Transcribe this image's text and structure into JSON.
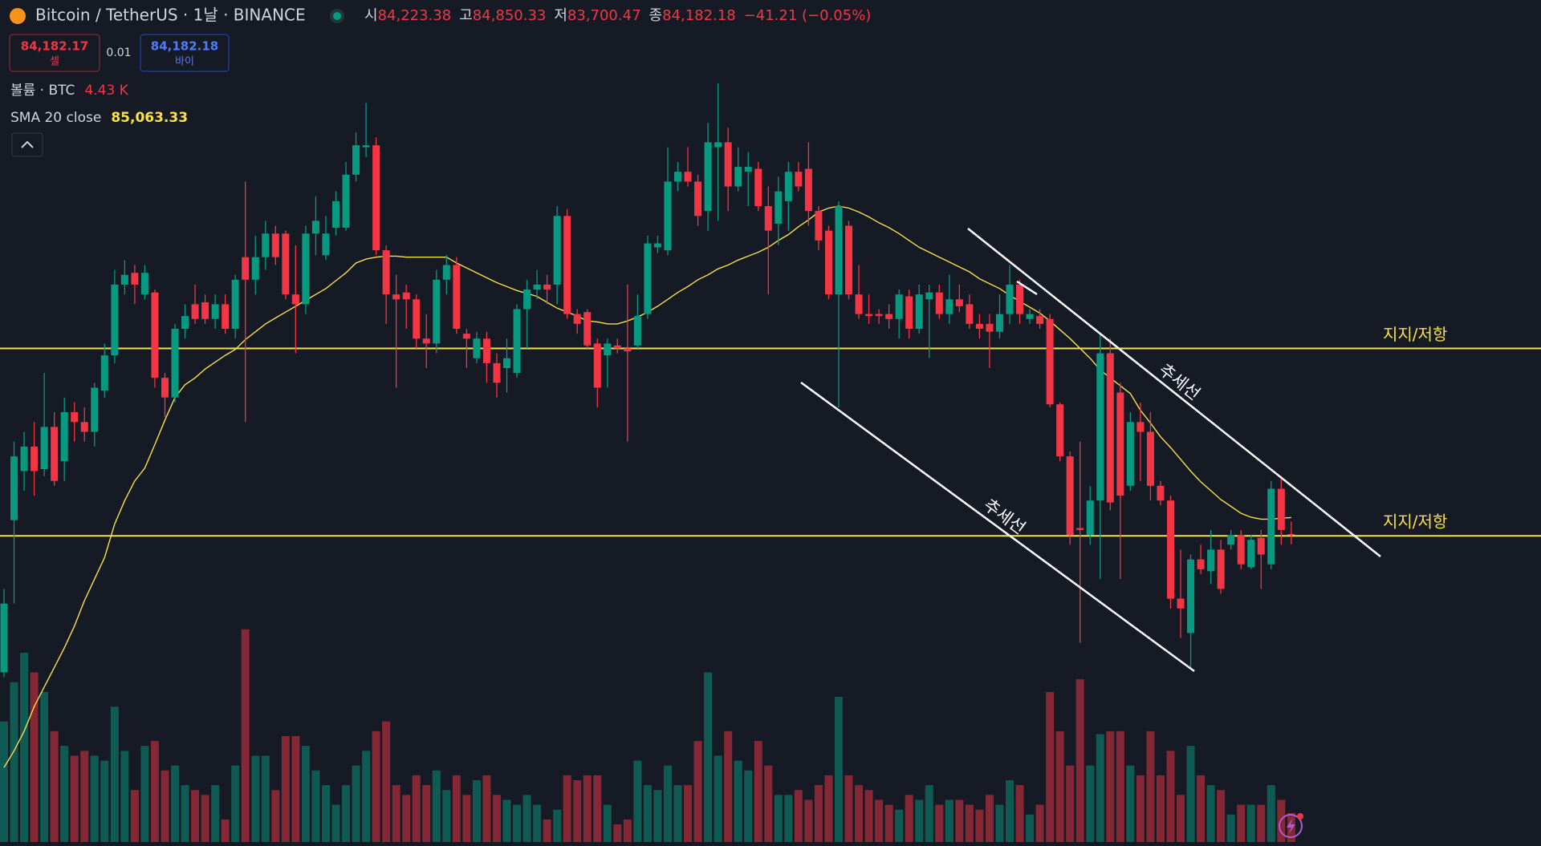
{
  "header": {
    "symbol": "Bitcoin / TetherUS · 1날 · BINANCE",
    "open_label": "시",
    "open": "84,223.38",
    "high_label": "고",
    "high": "84,850.33",
    "low_label": "저",
    "low": "83,700.47",
    "close_label": "종",
    "close": "84,182.18",
    "change": "−41.21 (−0.05%)"
  },
  "trade": {
    "sell_price": "84,182.17",
    "sell_label": "셀",
    "spread": "0.01",
    "buy_price": "84,182.18",
    "buy_label": "바이"
  },
  "chart_data": {
    "type": "candlestick",
    "up_color": "#089981",
    "down_color": "#f23645",
    "ylim": [
      68330,
      111430
    ],
    "volume_lim": [
      0,
      40000
    ],
    "open": [
      77180,
      84930,
      87430,
      88680,
      87530,
      89680,
      87930,
      90430,
      89930,
      89430,
      91530,
      93330,
      96930,
      97530,
      96430,
      96530,
      92180,
      91180,
      94680,
      95930,
      96030,
      95180,
      95930,
      94680,
      98330,
      97180,
      98330,
      99530,
      99530,
      96430,
      95930,
      99530,
      98430,
      99830,
      99830,
      102530,
      103930,
      104030,
      98680,
      96430,
      96530,
      96180,
      94180,
      93930,
      97180,
      97930,
      94430,
      93180,
      94180,
      92930,
      92680,
      92430,
      95680,
      96680,
      96930,
      96930,
      100430,
      95430,
      95530,
      93930,
      93330,
      93830,
      93680,
      93830,
      95430,
      98830,
      98680,
      102180,
      102680,
      102180,
      100680,
      103930,
      104180,
      101930,
      102680,
      102830,
      100930,
      100030,
      101180,
      102680,
      102830,
      100680,
      99680,
      96430,
      99930,
      96430,
      95430,
      95430,
      95430,
      95180,
      96330,
      94680,
      96180,
      96530,
      95430,
      96180,
      95930,
      94930,
      94930,
      94530,
      95430,
      96930,
      95180,
      95330,
      95180,
      90830,
      88180,
      84530,
      84180,
      85930,
      93430,
      91430,
      86680,
      89930,
      89430,
      86680,
      85930,
      80930,
      79180,
      82930,
      82330,
      83430,
      83680,
      84180,
      82530,
      84030,
      82680,
      86530,
      84223.38
    ],
    "high": [
      81430,
      88930,
      89430,
      89930,
      92430,
      90430,
      91180,
      90930,
      90680,
      91930,
      93930,
      97680,
      98180,
      97930,
      97930,
      96680,
      92430,
      94930,
      95930,
      96930,
      96430,
      96430,
      96430,
      97430,
      102180,
      99430,
      100180,
      99930,
      99680,
      98930,
      99930,
      101430,
      100430,
      101680,
      103180,
      104680,
      106180,
      104430,
      98930,
      97430,
      96930,
      96430,
      95430,
      97680,
      98430,
      98330,
      94680,
      94530,
      94530,
      93430,
      94180,
      95930,
      97180,
      97680,
      97430,
      100930,
      100780,
      95680,
      95680,
      94180,
      94180,
      94180,
      96930,
      96430,
      99430,
      99430,
      103930,
      103180,
      103930,
      102530,
      105180,
      107180,
      104930,
      103930,
      103680,
      103180,
      101930,
      102430,
      103180,
      103180,
      104180,
      100930,
      99930,
      101180,
      100180,
      97930,
      96430,
      95680,
      95930,
      96680,
      96680,
      96930,
      96930,
      96930,
      97430,
      96930,
      96430,
      95430,
      95430,
      96430,
      97930,
      97180,
      95680,
      95680,
      95430,
      90930,
      88430,
      88930,
      86680,
      94430,
      94180,
      91930,
      90430,
      90930,
      90430,
      86930,
      86180,
      83430,
      83180,
      83680,
      84430,
      83930,
      84430,
      84430,
      84180,
      84430,
      86930,
      87180,
      84850.33
    ],
    "low": [
      76930,
      80680,
      86430,
      86180,
      87180,
      86680,
      86930,
      88930,
      88930,
      88680,
      91180,
      92930,
      96430,
      95930,
      96180,
      91680,
      90180,
      90930,
      94180,
      94930,
      94930,
      94680,
      94430,
      94180,
      89930,
      96430,
      97680,
      97930,
      96180,
      93430,
      95430,
      98430,
      98180,
      99430,
      99680,
      102180,
      103430,
      98430,
      94930,
      91680,
      94680,
      93680,
      92680,
      93430,
      96430,
      94430,
      92680,
      92930,
      91930,
      91180,
      91430,
      92180,
      93680,
      96180,
      95930,
      95930,
      95180,
      94430,
      93680,
      90680,
      91680,
      93430,
      88930,
      93680,
      95180,
      98530,
      98430,
      101680,
      101930,
      99930,
      99680,
      100180,
      100680,
      101680,
      100930,
      100680,
      96430,
      98930,
      99680,
      101680,
      99930,
      98680,
      96180,
      90680,
      96180,
      95180,
      94930,
      94930,
      94680,
      94180,
      94180,
      94430,
      93180,
      95180,
      94930,
      95530,
      94680,
      94180,
      92680,
      94180,
      94930,
      94930,
      94930,
      94680,
      90680,
      87930,
      83680,
      78680,
      83680,
      81930,
      85430,
      81930,
      86430,
      86930,
      85930,
      85680,
      80430,
      78930,
      77430,
      82180,
      81680,
      81180,
      83430,
      82430,
      82430,
      81430,
      82430,
      83680,
      83700.47
    ],
    "close": [
      80680,
      88180,
      88680,
      87430,
      89680,
      86930,
      90430,
      89930,
      89430,
      91680,
      93330,
      96930,
      97430,
      96930,
      97530,
      92180,
      91180,
      94680,
      95330,
      95180,
      95180,
      95930,
      94680,
      97180,
      97180,
      98330,
      99530,
      98330,
      96430,
      95930,
      99530,
      100180,
      99530,
      101180,
      102530,
      104030,
      104030,
      98680,
      96430,
      96180,
      96180,
      94180,
      93930,
      97180,
      97930,
      94680,
      94180,
      94180,
      92930,
      91930,
      93180,
      95680,
      96680,
      96930,
      96680,
      100430,
      95430,
      94930,
      93830,
      91680,
      93930,
      93680,
      93530,
      95330,
      99030,
      99030,
      102180,
      102680,
      102180,
      100430,
      104180,
      104180,
      101930,
      102930,
      102930,
      100930,
      99680,
      101680,
      102680,
      101930,
      100680,
      99180,
      96430,
      100930,
      96430,
      95430,
      95330,
      95330,
      95180,
      96430,
      94680,
      96430,
      96530,
      95430,
      96180,
      95830,
      94930,
      94680,
      94530,
      95430,
      96930,
      95430,
      95430,
      94930,
      90830,
      88180,
      84180,
      84430,
      85930,
      93430,
      85830,
      86180,
      89930,
      89430,
      86680,
      85930,
      80930,
      80430,
      82930,
      82430,
      83430,
      81430,
      84180,
      82680,
      83930,
      83180,
      86530,
      84430,
      84182.18
    ],
    "volume": [
      18450,
      24450,
      28950,
      25950,
      22950,
      16950,
      14700,
      13200,
      13950,
      13200,
      12450,
      20700,
      13950,
      7950,
      14700,
      15450,
      10950,
      11700,
      8700,
      7950,
      7200,
      8700,
      3450,
      11700,
      32550,
      13200,
      13200,
      7950,
      16200,
      16200,
      14700,
      10950,
      8700,
      5700,
      8700,
      11700,
      13950,
      16950,
      18450,
      8700,
      7200,
      10200,
      8700,
      10950,
      7950,
      10200,
      7200,
      9450,
      10200,
      7200,
      6450,
      5700,
      7200,
      5700,
      3450,
      4950,
      10200,
      9450,
      10200,
      10200,
      5700,
      2700,
      3450,
      12450,
      8700,
      7950,
      11700,
      8700,
      8700,
      15450,
      25950,
      13200,
      16950,
      12450,
      10950,
      15450,
      11700,
      7200,
      7200,
      7950,
      6450,
      8700,
      10200,
      22200,
      10200,
      8700,
      7950,
      6450,
      5700,
      4950,
      7200,
      6450,
      8700,
      5700,
      6450,
      6450,
      5700,
      4950,
      7200,
      5700,
      9450,
      8700,
      4200,
      5700,
      22950,
      16950,
      11700,
      24900,
      11700,
      16500,
      16950,
      16950,
      11700,
      10200,
      16950,
      10200,
      13950,
      7200,
      14700,
      10200,
      8700,
      7950,
      4200,
      5700,
      5700,
      5700,
      8700,
      6450,
      4430
    ],
    "volume_legend": {
      "name": "볼륨 · BTC",
      "value_label": "4.43 K"
    },
    "sma": {
      "name": "SMA 20 close",
      "color": "#f7e24a",
      "value_label": "85,063.33",
      "values": [
        72330,
        73180,
        74180,
        75430,
        76430,
        77430,
        78430,
        79530,
        80830,
        81930,
        83030,
        84730,
        85930,
        86930,
        87580,
        88780,
        90030,
        91180,
        91830,
        92180,
        92630,
        92980,
        93330,
        93630,
        94130,
        94530,
        94930,
        95230,
        95530,
        95830,
        96130,
        96430,
        96730,
        97130,
        97530,
        98030,
        98230,
        98330,
        98380,
        98380,
        98330,
        98330,
        98330,
        98330,
        98330,
        98030,
        97780,
        97530,
        97280,
        97030,
        96830,
        96630,
        96480,
        96330,
        96030,
        95730,
        95530,
        95330,
        95080,
        95030,
        94930,
        94930,
        95080,
        95280,
        95530,
        95830,
        96180,
        96530,
        96830,
        97180,
        97430,
        97730,
        97930,
        98180,
        98380,
        98580,
        98830,
        99180,
        99480,
        99880,
        100230,
        100630,
        100830,
        100930,
        100830,
        100630,
        100380,
        100080,
        99830,
        99530,
        99180,
        98830,
        98580,
        98330,
        98080,
        97830,
        97580,
        97230,
        96980,
        96730,
        96380,
        96080,
        95780,
        95480,
        95080,
        94630,
        94180,
        93680,
        93180,
        92580,
        92180,
        91780,
        91380,
        90530,
        89880,
        89180,
        88630,
        88030,
        87430,
        86880,
        86430,
        85980,
        85630,
        85280,
        85080,
        84980,
        84980,
        85030,
        85063.33
      ]
    },
    "hlines": [
      {
        "value": 93680,
        "label": "지지/저항",
        "color": "#f7e24a"
      },
      {
        "value": 84130,
        "label": "지지/저항",
        "color": "#f7e24a"
      }
    ],
    "trendlines": [
      {
        "label": "추세선"
      },
      {
        "label": "추세선"
      }
    ]
  }
}
